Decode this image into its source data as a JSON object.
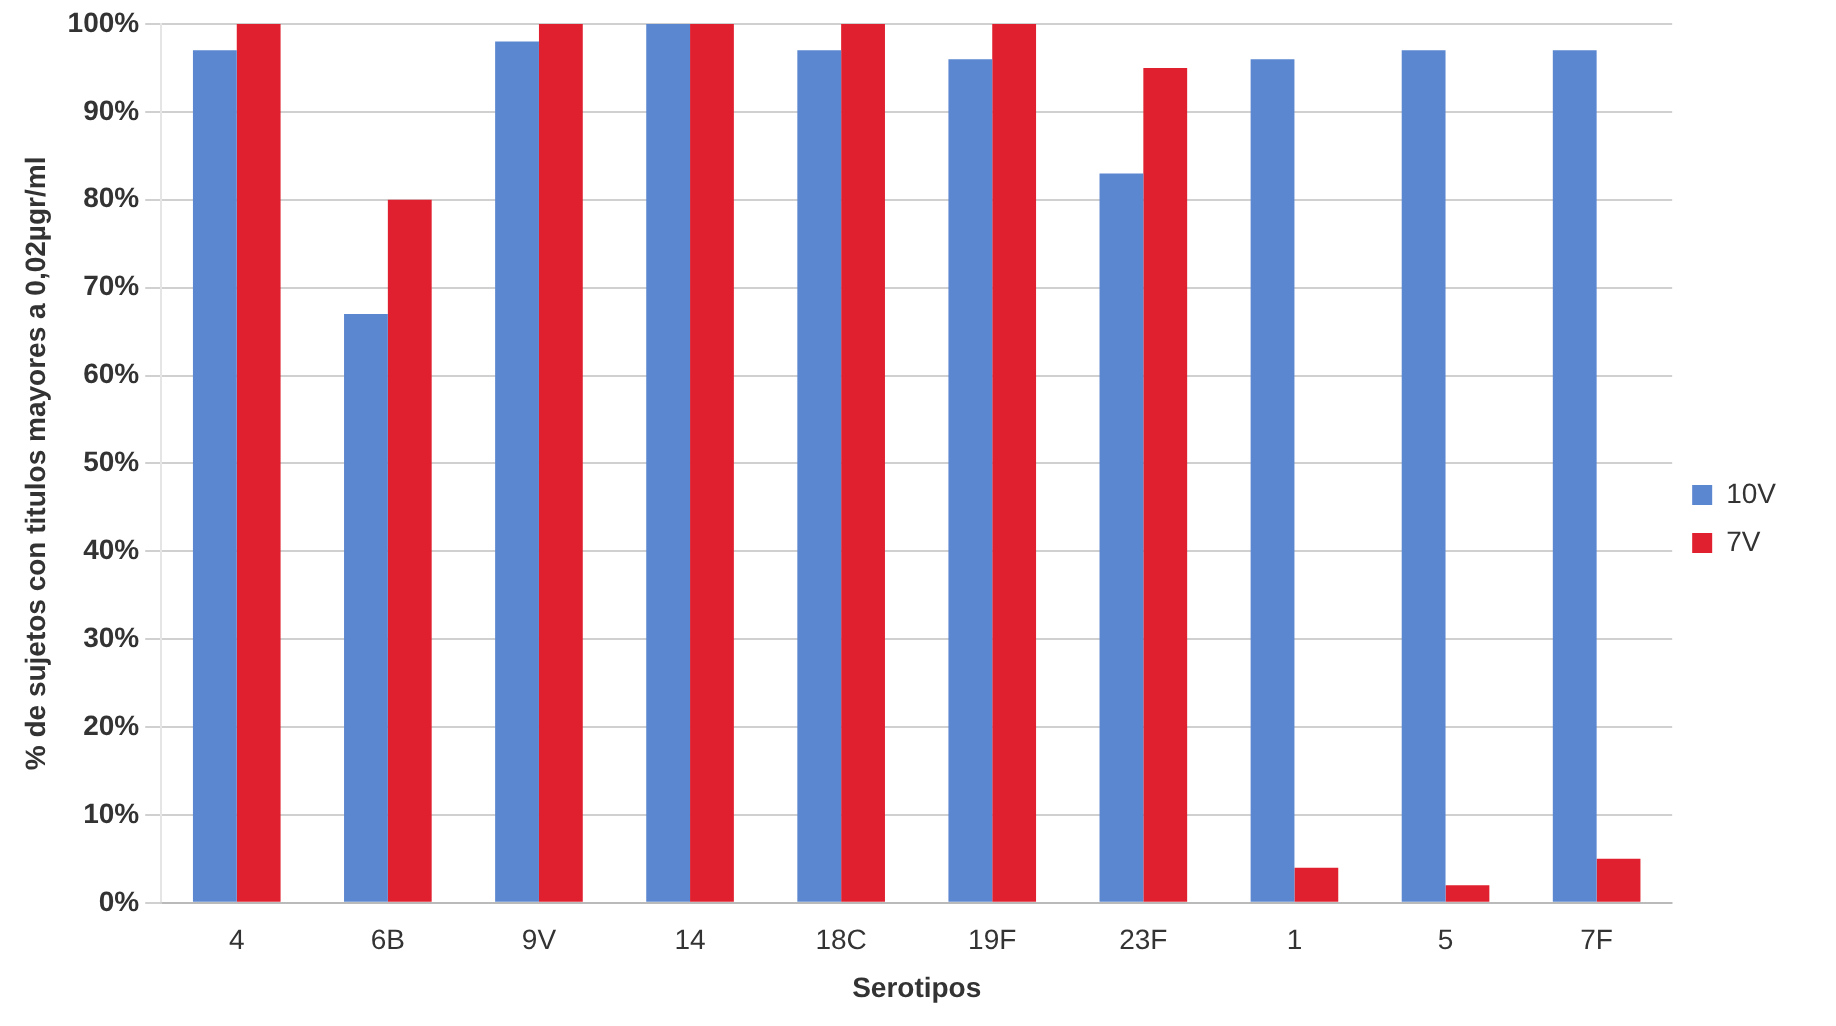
{
  "chart_data": {
    "type": "bar",
    "xlabel": "Serotipos",
    "ylabel": "% de sujetos con titulos mayores a 0,02µgr/ml",
    "categories": [
      "4",
      "6B",
      "9V",
      "14",
      "18C",
      "19F",
      "23F",
      "1",
      "5",
      "7F"
    ],
    "series": [
      {
        "name": "10V",
        "color": "#5b86d0",
        "values": [
          97,
          67,
          98,
          100,
          97,
          96,
          83,
          96,
          97,
          97
        ]
      },
      {
        "name": "7V",
        "color": "#e0202e",
        "values": [
          100,
          80,
          100,
          100,
          100,
          100,
          95,
          4,
          2,
          5
        ]
      }
    ],
    "ylim": [
      0,
      100
    ],
    "yticks": [
      {
        "value": 0,
        "label": "0%"
      },
      {
        "value": 10,
        "label": "10%"
      },
      {
        "value": 20,
        "label": "20%"
      },
      {
        "value": 30,
        "label": "30%"
      },
      {
        "value": 40,
        "label": "40%"
      },
      {
        "value": 50,
        "label": "50%"
      },
      {
        "value": 60,
        "label": "60%"
      },
      {
        "value": 70,
        "label": "70%"
      },
      {
        "value": 80,
        "label": "80%"
      },
      {
        "value": 90,
        "label": "90%"
      },
      {
        "value": 100,
        "label": "100%"
      }
    ],
    "grid": "y",
    "legend": "right"
  }
}
